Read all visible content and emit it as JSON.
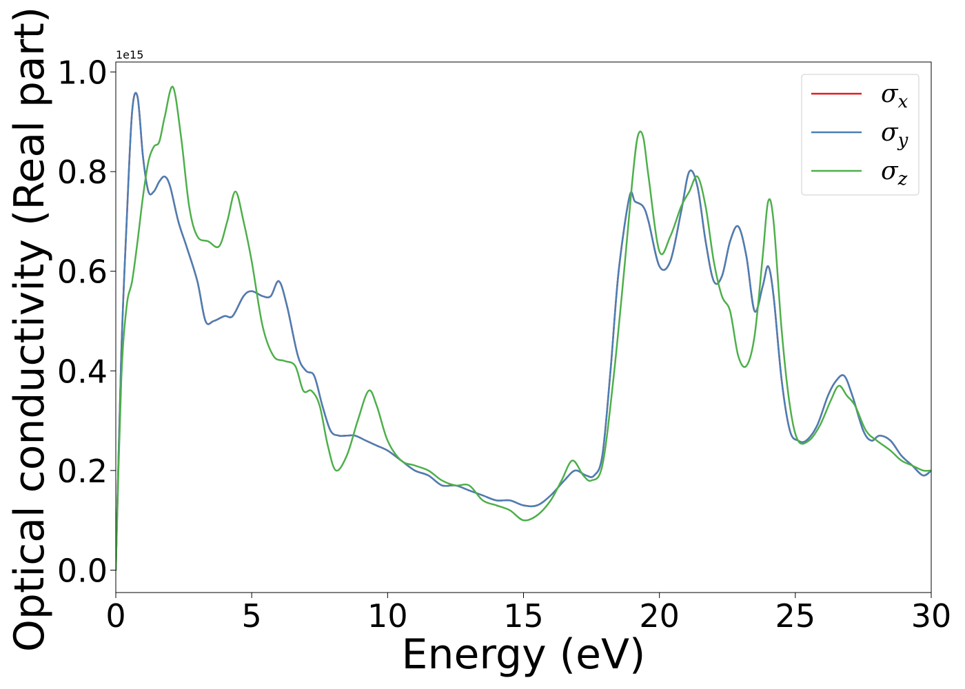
{
  "chart_data": {
    "type": "line",
    "title": "",
    "xlabel": "Energy (eV)",
    "ylabel": "Optical conductivity (Real part)",
    "y_offset_text": "1e15",
    "xlim": [
      0,
      30
    ],
    "ylim": [
      -0.045,
      1.02
    ],
    "xticks": [
      0,
      5,
      10,
      15,
      20,
      25,
      30
    ],
    "xtick_labels": [
      "0",
      "5",
      "10",
      "15",
      "20",
      "25",
      "30"
    ],
    "yticks": [
      0.0,
      0.2,
      0.4,
      0.6,
      0.8,
      1.0
    ],
    "ytick_labels": [
      "0.0",
      "0.2",
      "0.4",
      "0.6",
      "0.8",
      "1.0"
    ],
    "grid": false,
    "legend_position": "top-right",
    "series": [
      {
        "name": "σx",
        "base": "σ",
        "sub": "x",
        "color": "#e41a1c",
        "x": [
          0,
          0.2,
          0.4,
          0.6,
          0.8,
          1.0,
          1.2,
          1.4,
          1.6,
          1.8,
          2.0,
          2.3,
          2.6,
          3.0,
          3.3,
          3.6,
          4.0,
          4.3,
          4.7,
          5.0,
          5.4,
          5.7,
          6.0,
          6.3,
          6.7,
          7.0,
          7.3,
          7.6,
          7.9,
          8.2,
          8.5,
          8.8,
          9.2,
          9.6,
          10.0,
          10.5,
          11.0,
          11.5,
          12.0,
          12.5,
          13.0,
          13.5,
          14.0,
          14.5,
          15.0,
          15.5,
          16.0,
          16.5,
          16.9,
          17.3,
          17.6,
          17.9,
          18.2,
          18.5,
          18.9,
          19.1,
          19.4,
          19.6,
          20.0,
          20.4,
          20.8,
          21.1,
          21.4,
          21.7,
          22.0,
          22.3,
          22.6,
          22.9,
          23.2,
          23.5,
          23.8,
          24.0,
          24.2,
          24.5,
          24.8,
          25.1,
          25.4,
          25.8,
          26.2,
          26.5,
          26.8,
          27.1,
          27.5,
          27.8,
          28.1,
          28.5,
          28.9,
          29.3,
          29.7,
          30.0
        ],
        "y": [
          0.0,
          0.43,
          0.7,
          0.92,
          0.95,
          0.83,
          0.76,
          0.76,
          0.78,
          0.79,
          0.77,
          0.7,
          0.65,
          0.58,
          0.5,
          0.5,
          0.51,
          0.51,
          0.55,
          0.56,
          0.55,
          0.55,
          0.58,
          0.53,
          0.43,
          0.4,
          0.39,
          0.33,
          0.28,
          0.27,
          0.27,
          0.27,
          0.26,
          0.25,
          0.24,
          0.22,
          0.2,
          0.19,
          0.17,
          0.17,
          0.16,
          0.15,
          0.14,
          0.14,
          0.13,
          0.13,
          0.15,
          0.18,
          0.2,
          0.19,
          0.19,
          0.23,
          0.4,
          0.6,
          0.75,
          0.74,
          0.73,
          0.7,
          0.61,
          0.62,
          0.72,
          0.8,
          0.77,
          0.66,
          0.58,
          0.59,
          0.66,
          0.69,
          0.63,
          0.52,
          0.57,
          0.61,
          0.55,
          0.38,
          0.28,
          0.26,
          0.26,
          0.29,
          0.35,
          0.38,
          0.39,
          0.35,
          0.28,
          0.26,
          0.27,
          0.26,
          0.23,
          0.21,
          0.19,
          0.2
        ]
      },
      {
        "name": "σy",
        "base": "σ",
        "sub": "y",
        "color": "#4a7fb5",
        "x": [
          0,
          0.2,
          0.4,
          0.6,
          0.8,
          1.0,
          1.2,
          1.4,
          1.6,
          1.8,
          2.0,
          2.3,
          2.6,
          3.0,
          3.3,
          3.6,
          4.0,
          4.3,
          4.7,
          5.0,
          5.4,
          5.7,
          6.0,
          6.3,
          6.7,
          7.0,
          7.3,
          7.6,
          7.9,
          8.2,
          8.5,
          8.8,
          9.2,
          9.6,
          10.0,
          10.5,
          11.0,
          11.5,
          12.0,
          12.5,
          13.0,
          13.5,
          14.0,
          14.5,
          15.0,
          15.5,
          16.0,
          16.5,
          16.9,
          17.3,
          17.6,
          17.9,
          18.2,
          18.5,
          18.9,
          19.1,
          19.4,
          19.6,
          20.0,
          20.4,
          20.8,
          21.1,
          21.4,
          21.7,
          22.0,
          22.3,
          22.6,
          22.9,
          23.2,
          23.5,
          23.8,
          24.0,
          24.2,
          24.5,
          24.8,
          25.1,
          25.4,
          25.8,
          26.2,
          26.5,
          26.8,
          27.1,
          27.5,
          27.8,
          28.1,
          28.5,
          28.9,
          29.3,
          29.7,
          30.0
        ],
        "y": [
          0.0,
          0.43,
          0.7,
          0.92,
          0.95,
          0.83,
          0.76,
          0.76,
          0.78,
          0.79,
          0.77,
          0.7,
          0.65,
          0.58,
          0.5,
          0.5,
          0.51,
          0.51,
          0.55,
          0.56,
          0.55,
          0.55,
          0.58,
          0.53,
          0.43,
          0.4,
          0.39,
          0.33,
          0.28,
          0.27,
          0.27,
          0.27,
          0.26,
          0.25,
          0.24,
          0.22,
          0.2,
          0.19,
          0.17,
          0.17,
          0.16,
          0.15,
          0.14,
          0.14,
          0.13,
          0.13,
          0.15,
          0.18,
          0.2,
          0.19,
          0.19,
          0.23,
          0.4,
          0.6,
          0.75,
          0.74,
          0.73,
          0.7,
          0.61,
          0.62,
          0.72,
          0.8,
          0.77,
          0.66,
          0.58,
          0.59,
          0.66,
          0.69,
          0.63,
          0.52,
          0.57,
          0.61,
          0.55,
          0.38,
          0.28,
          0.26,
          0.26,
          0.29,
          0.35,
          0.38,
          0.39,
          0.35,
          0.28,
          0.26,
          0.27,
          0.26,
          0.23,
          0.21,
          0.19,
          0.2
        ]
      },
      {
        "name": "σz",
        "base": "σ",
        "sub": "z",
        "color": "#4daf4a",
        "x": [
          0,
          0.2,
          0.4,
          0.6,
          0.8,
          1.0,
          1.2,
          1.4,
          1.6,
          1.8,
          2.1,
          2.4,
          2.7,
          3.0,
          3.4,
          3.8,
          4.1,
          4.4,
          4.7,
          5.0,
          5.4,
          5.8,
          6.2,
          6.6,
          6.9,
          7.2,
          7.5,
          7.8,
          8.1,
          8.5,
          8.9,
          9.3,
          9.6,
          10.0,
          10.5,
          11.0,
          11.5,
          12.0,
          12.5,
          13.0,
          13.5,
          14.0,
          14.5,
          15.0,
          15.5,
          16.0,
          16.4,
          16.8,
          17.2,
          17.5,
          17.9,
          18.3,
          18.7,
          19.0,
          19.2,
          19.4,
          19.6,
          20.0,
          20.4,
          20.8,
          21.1,
          21.4,
          21.7,
          22.0,
          22.3,
          22.6,
          22.9,
          23.2,
          23.5,
          23.8,
          24.0,
          24.2,
          24.5,
          24.8,
          25.1,
          25.5,
          25.9,
          26.3,
          26.6,
          26.9,
          27.2,
          27.6,
          28.0,
          28.5,
          28.9,
          29.3,
          29.7,
          30.0
        ],
        "y": [
          0.0,
          0.38,
          0.53,
          0.58,
          0.66,
          0.75,
          0.82,
          0.85,
          0.86,
          0.91,
          0.97,
          0.87,
          0.73,
          0.67,
          0.66,
          0.65,
          0.7,
          0.76,
          0.7,
          0.62,
          0.49,
          0.43,
          0.42,
          0.41,
          0.36,
          0.36,
          0.33,
          0.25,
          0.2,
          0.23,
          0.3,
          0.36,
          0.33,
          0.26,
          0.22,
          0.21,
          0.2,
          0.18,
          0.17,
          0.17,
          0.14,
          0.13,
          0.12,
          0.1,
          0.11,
          0.14,
          0.18,
          0.22,
          0.19,
          0.18,
          0.21,
          0.38,
          0.6,
          0.78,
          0.87,
          0.87,
          0.79,
          0.64,
          0.67,
          0.73,
          0.76,
          0.79,
          0.73,
          0.62,
          0.55,
          0.52,
          0.43,
          0.41,
          0.47,
          0.63,
          0.74,
          0.7,
          0.48,
          0.33,
          0.26,
          0.26,
          0.29,
          0.34,
          0.37,
          0.35,
          0.33,
          0.28,
          0.26,
          0.24,
          0.22,
          0.21,
          0.2,
          0.2
        ]
      }
    ]
  }
}
